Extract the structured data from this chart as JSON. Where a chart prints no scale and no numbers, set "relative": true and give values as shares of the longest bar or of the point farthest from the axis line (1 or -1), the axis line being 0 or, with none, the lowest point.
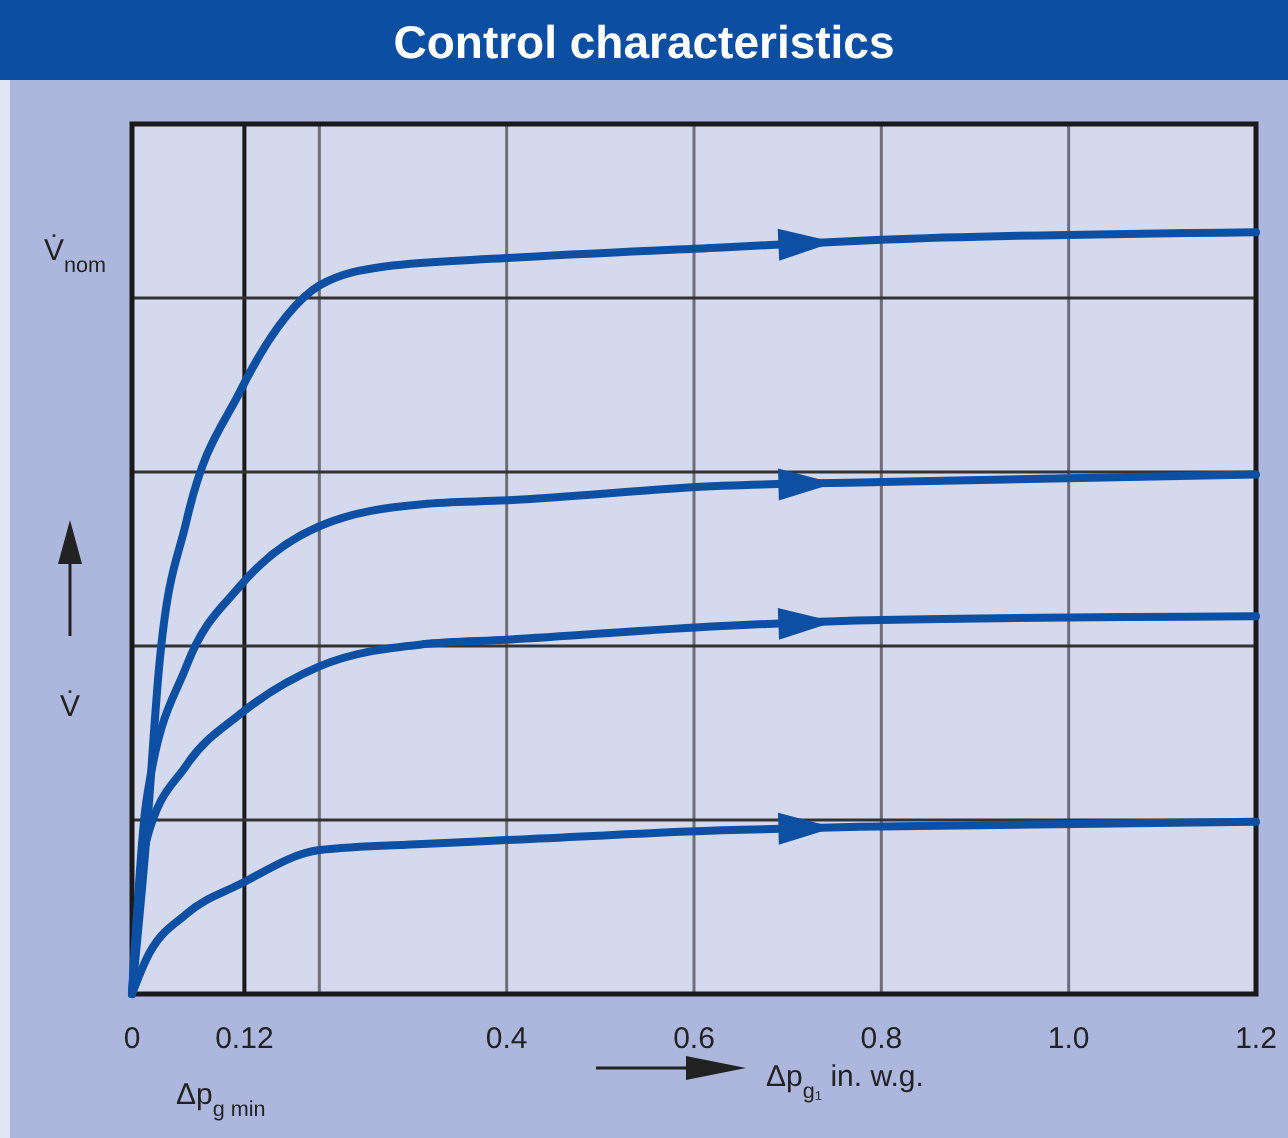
{
  "chart_data": {
    "type": "line",
    "title": "Control characteristics",
    "xlabel": "Δp$_{g₁}$ in. w.g.",
    "ylabel": "V̇",
    "annotations": [
      "V̇$_{nom}$",
      "Δp$_{g min}$"
    ],
    "relative": true,
    "grid": true,
    "line_style": "solid",
    "ref_lines": [
      {
        "axis": "x",
        "value": 0.12,
        "color": "#1a1a1a"
      }
    ],
    "xlim": [
      0,
      1.2
    ],
    "xticks": [
      0,
      0.12,
      {
        "value": 0.2,
        "label": null
      },
      0.4,
      0.6,
      0.8,
      {
        "value": 1.0,
        "label": "1.0"
      },
      1.2
    ],
    "series": [
      {
        "color": "#0d4fa3",
        "x": [
          0,
          0.015,
          0.029,
          0.058,
          0.115,
          0.165,
          0.2,
          0.27,
          0.4,
          0.63,
          0.8,
          1.2
        ],
        "values": [
          0,
          0.2,
          0.43,
          0.62,
          0.79,
          0.89,
          0.93,
          0.955,
          0.966,
          0.98,
          0.99,
          1
        ]
      },
      {
        "color": "#0d4fa3",
        "x": [
          0,
          0.015,
          0.058,
          0.115,
          0.2,
          0.31,
          0.4,
          0.63,
          0.8,
          1.2
        ],
        "values": [
          0,
          0.25,
          0.43,
          0.535,
          0.614,
          0.643,
          0.648,
          0.667,
          0.672,
          0.682
        ]
      },
      {
        "color": "#0d4fa3",
        "x": [
          0,
          0.015,
          0.058,
          0.115,
          0.2,
          0.31,
          0.4,
          0.63,
          0.8,
          1.2
        ],
        "values": [
          0,
          0.2,
          0.3,
          0.367,
          0.43,
          0.459,
          0.465,
          0.483,
          0.491,
          0.496
        ]
      },
      {
        "color": "#0d4fa3",
        "x": [
          0,
          0.015,
          0.058,
          0.115,
          0.2,
          0.31,
          0.4,
          0.63,
          0.8,
          1.2
        ],
        "values": [
          0,
          0.045,
          0.105,
          0.144,
          0.189,
          0.197,
          0.202,
          0.215,
          0.22,
          0.226
        ]
      }
    ]
  }
}
